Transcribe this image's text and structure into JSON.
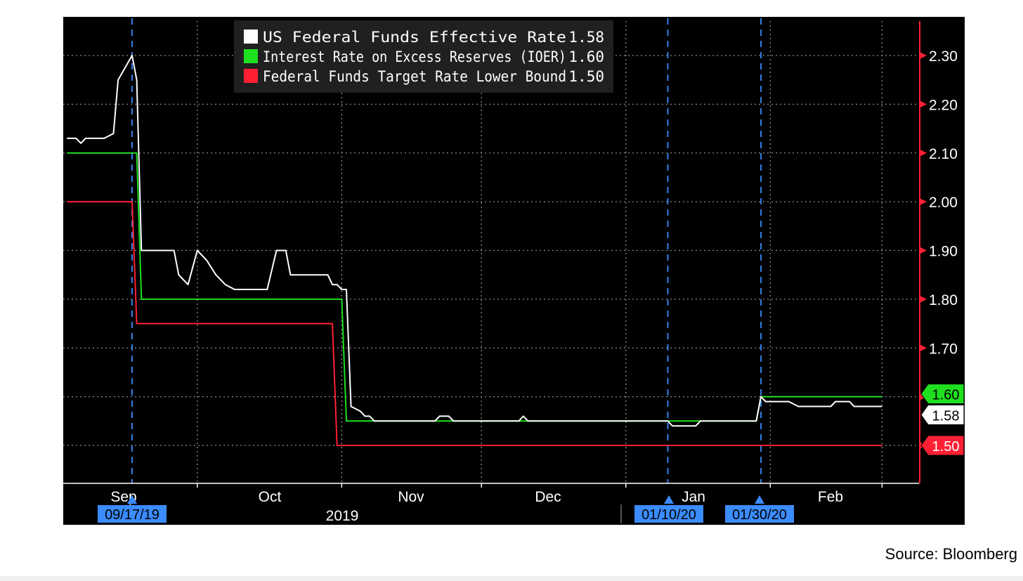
{
  "source": "Source: Bloomberg",
  "chart_data": {
    "type": "line",
    "x_axis": {
      "months": [
        "Sep",
        "Oct",
        "Nov",
        "Dec",
        "Jan",
        "Feb"
      ],
      "year_label": "2019",
      "markers": [
        "09/17/19",
        "01/10/20",
        "01/30/20"
      ]
    },
    "y_axis": {
      "position": "right",
      "range": [
        1.42,
        2.37
      ],
      "ticks": [
        "1.50",
        "1.60",
        "1.70",
        "1.80",
        "1.90",
        "2.00",
        "2.10",
        "2.20",
        "2.30"
      ],
      "grid": true
    },
    "legend": {
      "placement": "top-left",
      "items": [
        {
          "label": "US Federal Funds Effective Rate",
          "value": "1.58",
          "color": "#ffffff"
        },
        {
          "label": "Interest Rate on Excess Reserves (IOER)",
          "value": "1.60",
          "color": "#1ee01e"
        },
        {
          "label": "Federal Funds Target Rate Lower Bound",
          "value": "1.50",
          "color": "#ff2035"
        }
      ]
    },
    "last_value_tags": [
      {
        "value": "1.60",
        "color": "#1ee01e"
      },
      {
        "value": "1.58",
        "color": "#ffffff"
      },
      {
        "value": "1.50",
        "color": "#ff2035"
      }
    ],
    "series": [
      {
        "name": "US Federal Funds Effective Rate",
        "color": "#ffffff",
        "points": [
          [
            "2019-09-03",
            2.13
          ],
          [
            "2019-09-05",
            2.13
          ],
          [
            "2019-09-06",
            2.12
          ],
          [
            "2019-09-07",
            2.13
          ],
          [
            "2019-09-11",
            2.13
          ],
          [
            "2019-09-13",
            2.14
          ],
          [
            "2019-09-14",
            2.25
          ],
          [
            "2019-09-17",
            2.3
          ],
          [
            "2019-09-18",
            2.25
          ],
          [
            "2019-09-19",
            1.9
          ],
          [
            "2019-09-23",
            1.9
          ],
          [
            "2019-09-26",
            1.9
          ],
          [
            "2019-09-27",
            1.85
          ],
          [
            "2019-09-29",
            1.83
          ],
          [
            "2019-10-01",
            1.9
          ],
          [
            "2019-10-03",
            1.88
          ],
          [
            "2019-10-05",
            1.85
          ],
          [
            "2019-10-07",
            1.83
          ],
          [
            "2019-10-09",
            1.82
          ],
          [
            "2019-10-16",
            1.82
          ],
          [
            "2019-10-18",
            1.9
          ],
          [
            "2019-10-20",
            1.9
          ],
          [
            "2019-10-21",
            1.85
          ],
          [
            "2019-10-29",
            1.85
          ],
          [
            "2019-10-30",
            1.83
          ],
          [
            "2019-10-31",
            1.83
          ],
          [
            "2019-11-01",
            1.82
          ],
          [
            "2019-11-02",
            1.82
          ],
          [
            "2019-11-03",
            1.58
          ],
          [
            "2019-11-05",
            1.57
          ],
          [
            "2019-11-06",
            1.56
          ],
          [
            "2019-11-07",
            1.56
          ],
          [
            "2019-11-08",
            1.55
          ],
          [
            "2019-11-21",
            1.55
          ],
          [
            "2019-11-22",
            1.56
          ],
          [
            "2019-11-24",
            1.56
          ],
          [
            "2019-11-25",
            1.55
          ],
          [
            "2019-12-09",
            1.55
          ],
          [
            "2019-12-10",
            1.56
          ],
          [
            "2019-12-11",
            1.55
          ],
          [
            "2020-01-10",
            1.55
          ],
          [
            "2020-01-11",
            1.54
          ],
          [
            "2020-01-16",
            1.54
          ],
          [
            "2020-01-17",
            1.55
          ],
          [
            "2020-01-29",
            1.55
          ],
          [
            "2020-01-30",
            1.6
          ],
          [
            "2020-01-31",
            1.59
          ],
          [
            "2020-02-05",
            1.59
          ],
          [
            "2020-02-07",
            1.58
          ],
          [
            "2020-02-14",
            1.58
          ],
          [
            "2020-02-15",
            1.59
          ],
          [
            "2020-02-18",
            1.59
          ],
          [
            "2020-02-19",
            1.58
          ],
          [
            "2020-02-25",
            1.58
          ]
        ]
      },
      {
        "name": "Interest Rate on Excess Reserves (IOER)",
        "color": "#1ee01e",
        "points": [
          [
            "2019-09-03",
            2.1
          ],
          [
            "2019-09-18",
            2.1
          ],
          [
            "2019-09-19",
            1.8
          ],
          [
            "2019-11-01",
            1.8
          ],
          [
            "2019-11-02",
            1.55
          ],
          [
            "2020-01-29",
            1.55
          ],
          [
            "2020-01-30",
            1.6
          ],
          [
            "2020-02-25",
            1.6
          ]
        ]
      },
      {
        "name": "Federal Funds Target Rate Lower Bound",
        "color": "#ff2035",
        "points": [
          [
            "2019-09-03",
            2.0
          ],
          [
            "2019-09-17",
            2.0
          ],
          [
            "2019-09-18",
            1.75
          ],
          [
            "2019-10-30",
            1.75
          ],
          [
            "2019-10-31",
            1.5
          ],
          [
            "2020-02-25",
            1.5
          ]
        ]
      }
    ]
  }
}
